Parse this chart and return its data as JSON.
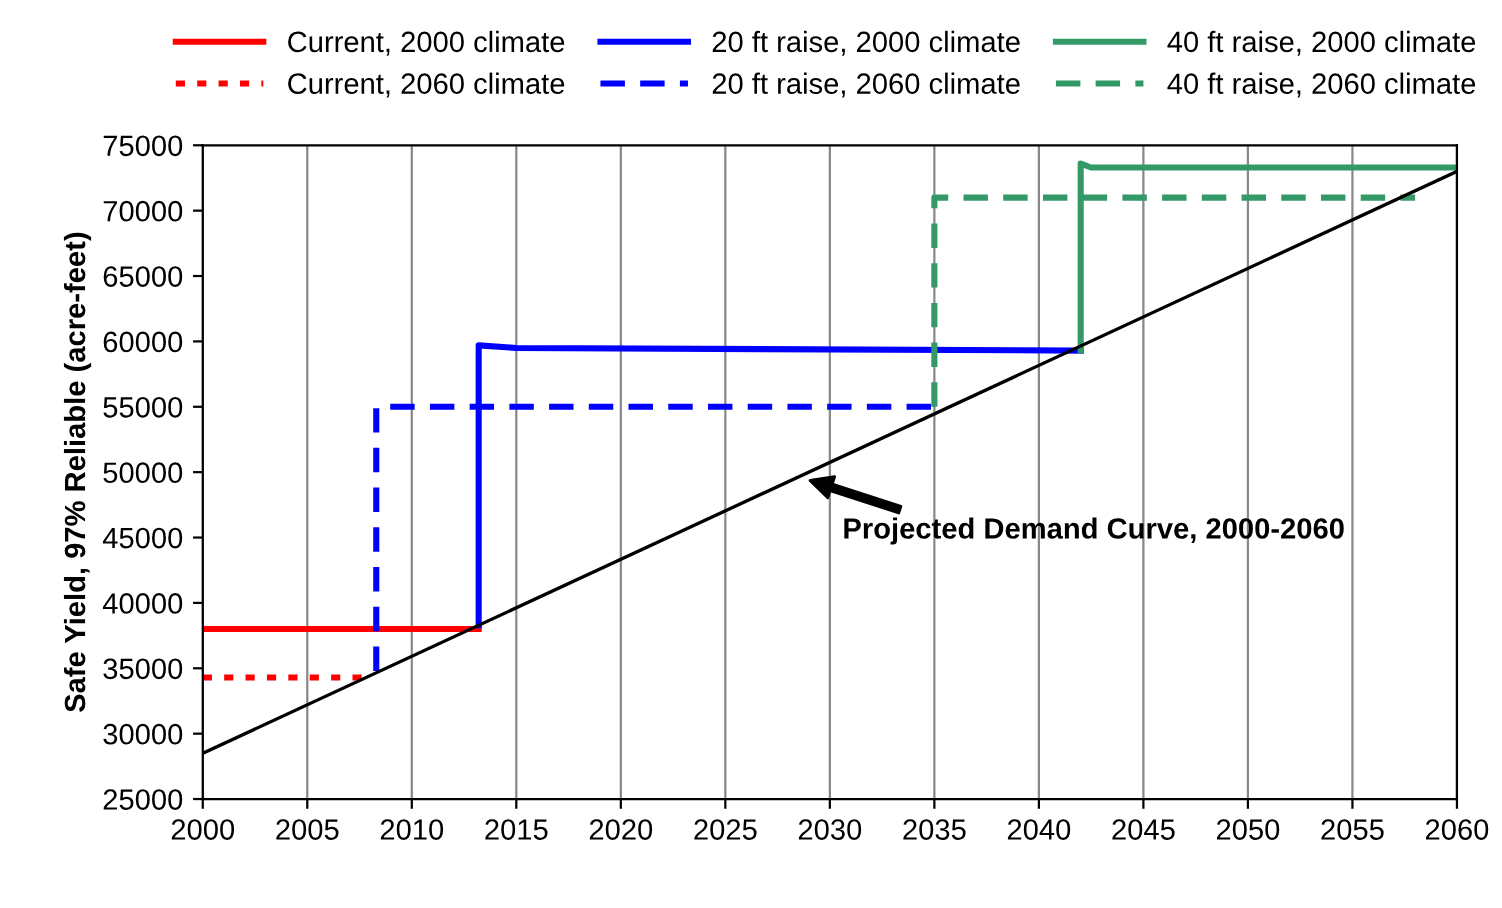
{
  "chart_data": {
    "type": "line",
    "ylabel": "Safe Yield, 97% Reliable (acre-feet)",
    "xlim": [
      2000,
      2060
    ],
    "xticks": [
      2000,
      2005,
      2010,
      2015,
      2020,
      2025,
      2030,
      2035,
      2040,
      2045,
      2050,
      2055,
      2060
    ],
    "ylim": [
      25000,
      75000
    ],
    "yticks": [
      25000,
      30000,
      35000,
      40000,
      45000,
      50000,
      55000,
      60000,
      65000,
      70000,
      75000
    ],
    "grid": "x",
    "legend": "top",
    "marker": "none",
    "series": [
      {
        "name": "Current, 2000 climate",
        "color": "#ff0000",
        "line_style": "solid",
        "x": [
          2000,
          2013.2
        ],
        "values": [
          38000,
          38000
        ]
      },
      {
        "name": "Current, 2060 climate",
        "color": "#ff0000",
        "line_style": "dotted",
        "x": [
          2000,
          2008
        ],
        "values": [
          34300,
          34300
        ]
      },
      {
        "name": "20 ft raise, 2000 climate",
        "color": "#0000ff",
        "line_style": "solid",
        "x": [
          2013.2,
          2013.2,
          2015,
          2042
        ],
        "values": [
          38300,
          59700,
          59500,
          59300
        ]
      },
      {
        "name": "20 ft raise, 2060 climate",
        "color": "#0000ff",
        "line_style": "dashed",
        "x": [
          2008.3,
          2008.3,
          2035
        ],
        "values": [
          34800,
          55000,
          55000
        ]
      },
      {
        "name": "40 ft raise, 2000 climate",
        "color": "#339966",
        "line_style": "solid",
        "x": [
          2042,
          2042,
          2042.5,
          2060
        ],
        "values": [
          59300,
          73600,
          73300,
          73300
        ]
      },
      {
        "name": "40 ft raise, 2060 climate",
        "color": "#339966",
        "line_style": "dashed",
        "x": [
          2035,
          2035,
          2058
        ],
        "values": [
          55000,
          71000,
          71000
        ]
      },
      {
        "color": "#000000",
        "line_style": "solid",
        "x": [
          2000,
          2060
        ],
        "values": [
          28500,
          73000
        ]
      }
    ],
    "annotations": [
      "Projected Demand Curve, 2000-2060"
    ]
  }
}
